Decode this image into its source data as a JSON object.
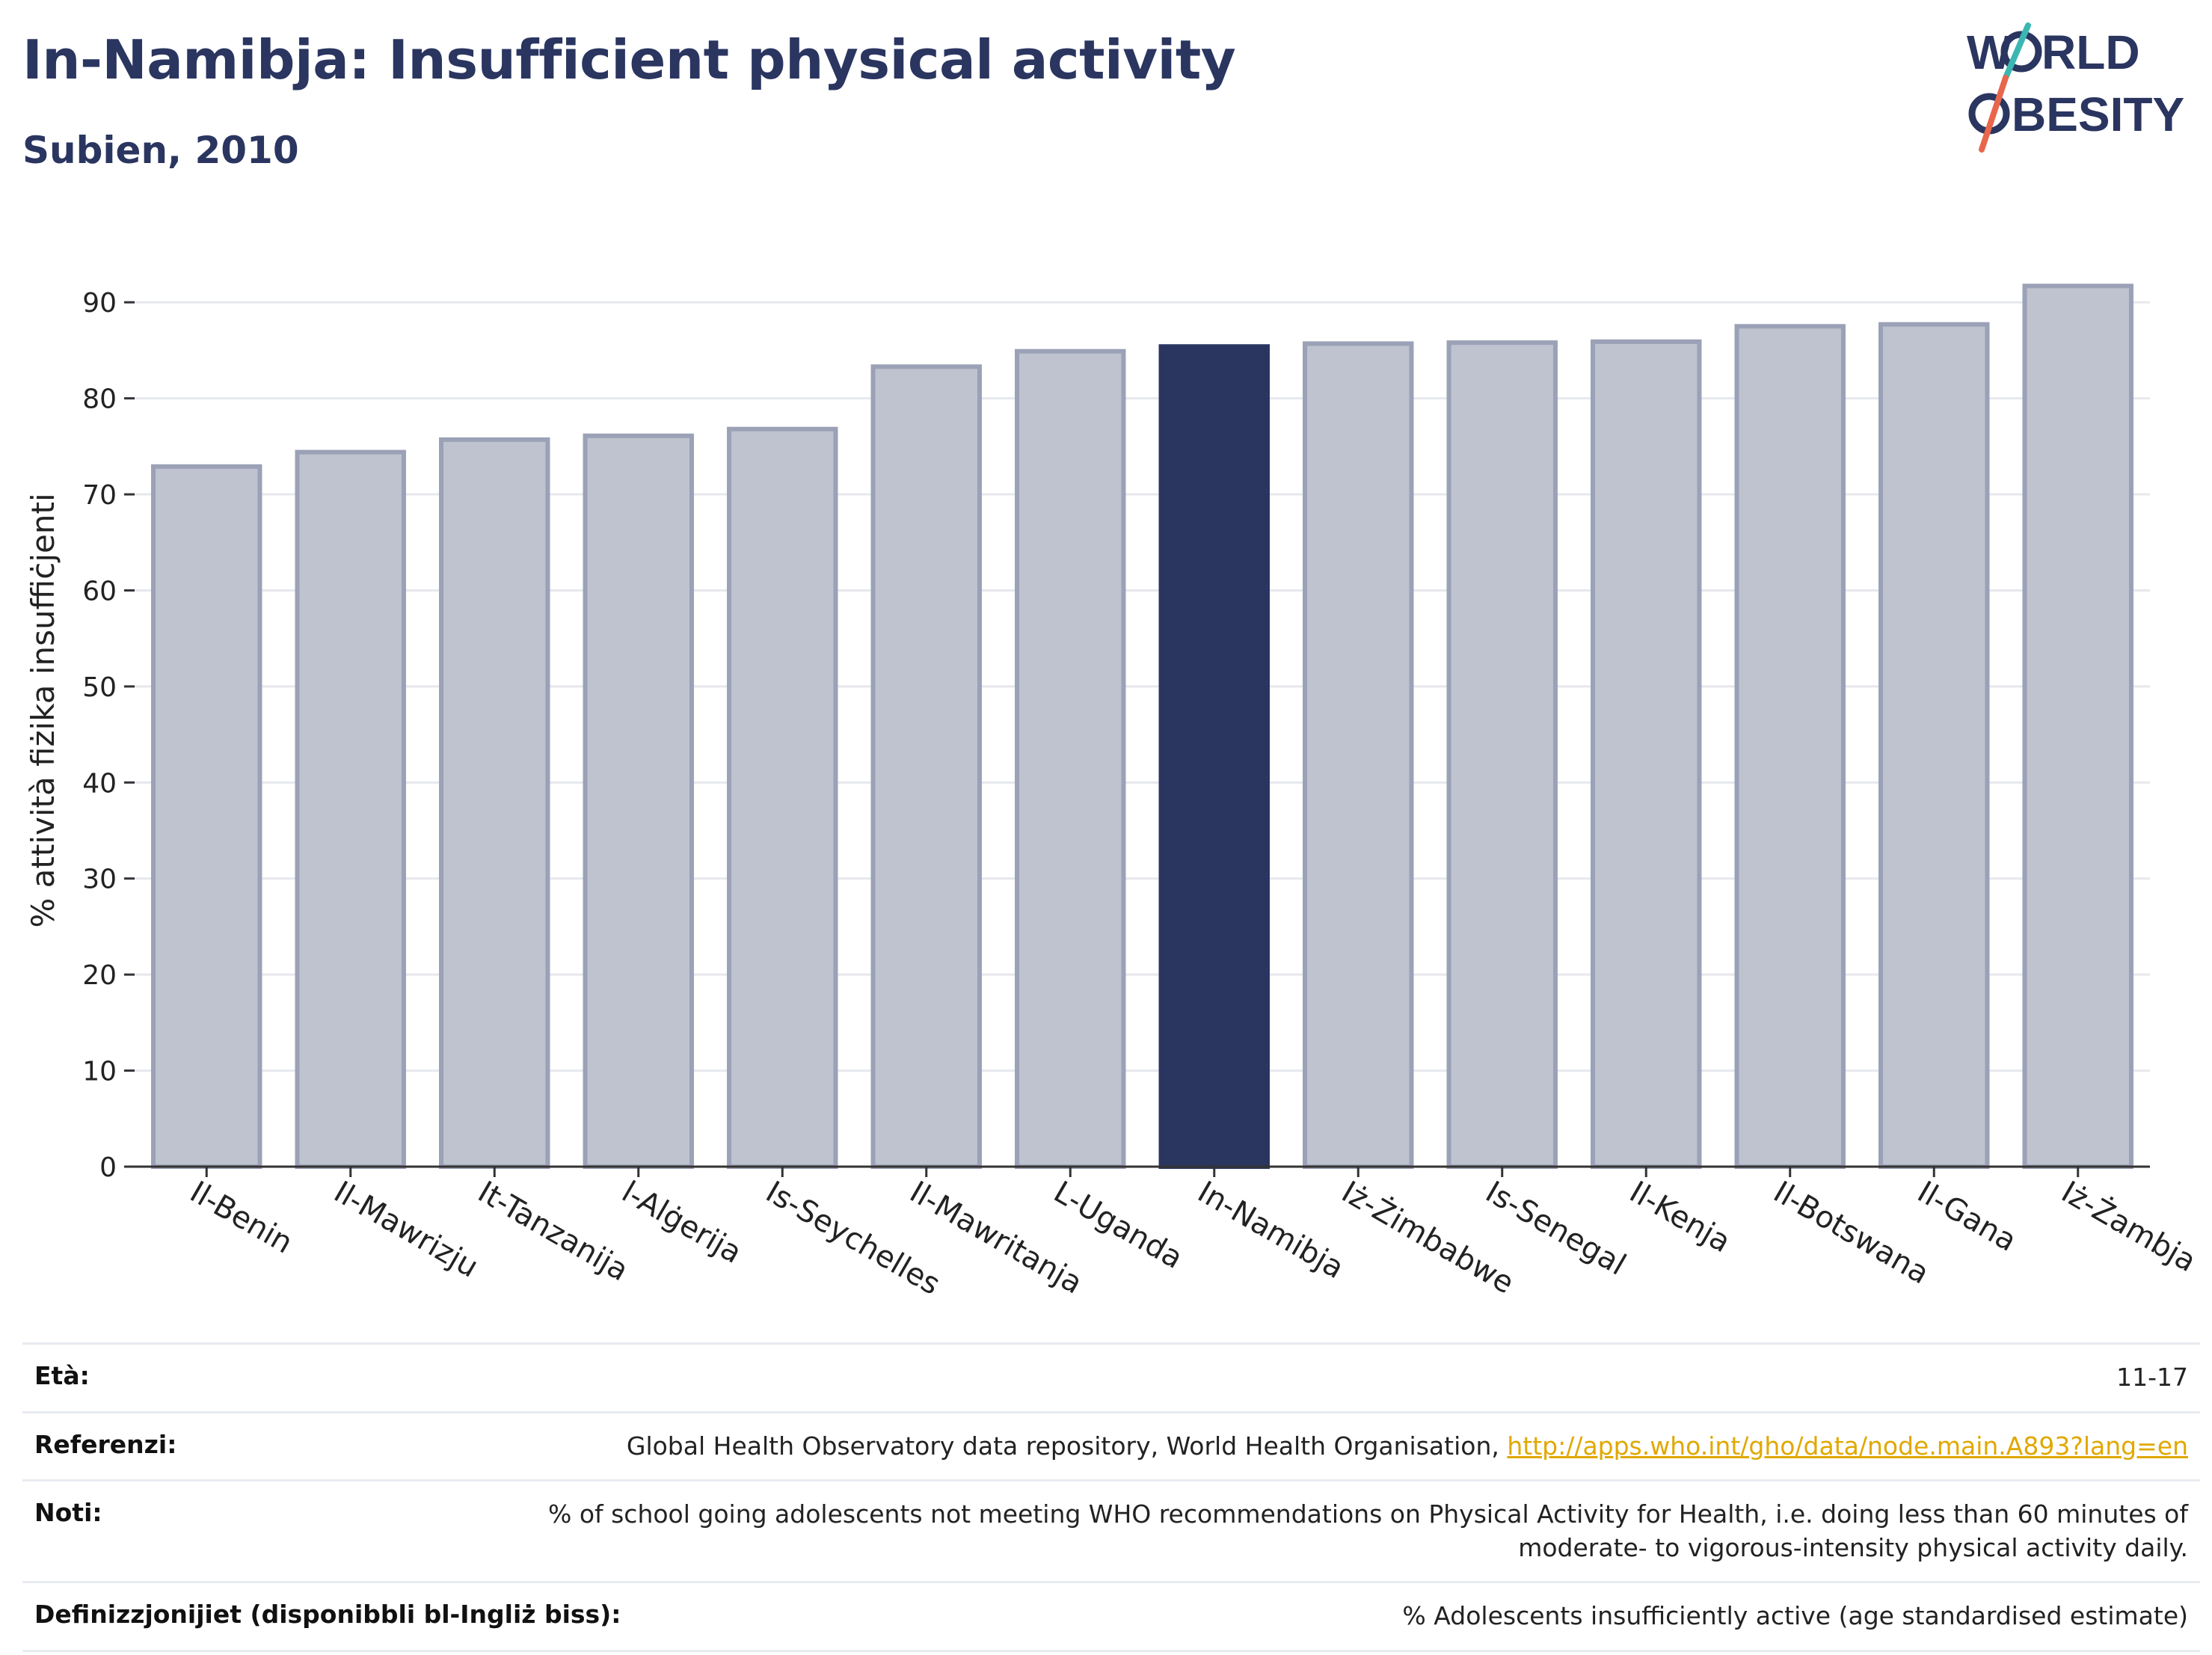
{
  "header": {
    "title": "In-Namibja: Insufficient physical activity",
    "subtitle": "Subien, 2010"
  },
  "logo": {
    "line1": "W",
    "line1_rest": "RLD",
    "line2_rest": "BESITY",
    "colors": {
      "text": "#2a3560",
      "slash_teal": "#3bb7b3",
      "slash_red": "#e8664c"
    }
  },
  "chart_data": {
    "type": "bar",
    "ylabel": "% attività fiżika insuffiċjenti",
    "xlabel": "",
    "ylim": [
      0,
      95
    ],
    "yticks": [
      0,
      10,
      20,
      30,
      40,
      50,
      60,
      70,
      80,
      90
    ],
    "categories": [
      "Il-Benin",
      "Il-Mawrizju",
      "It-Tanzanija",
      "l-Alġerija",
      "Is-Seychelles",
      "Il-Mawritanja",
      "L-Uganda",
      "In-Namibja",
      "Iż-Żimbabwe",
      "Is-Senegal",
      "Il-Kenja",
      "Il-Botswana",
      "Il-Gana",
      "Iż-Żambja"
    ],
    "values": [
      72.9,
      74.4,
      75.7,
      76.1,
      76.8,
      83.3,
      84.9,
      85.4,
      85.7,
      85.8,
      85.9,
      87.5,
      87.7,
      91.7
    ],
    "highlight": "In-Namibja",
    "colors": {
      "bar": "#bfc3cf",
      "bar_edge": "#9ba1b6",
      "highlight": "#2a3560",
      "grid": "#e6e8ee",
      "axis": "#333333"
    },
    "grid": true
  },
  "footer": {
    "rows": [
      {
        "label": "Età:",
        "value": "11-17"
      },
      {
        "label": "Referenzi:",
        "value": "Global Health Observatory data repository, World Health Organisation, ",
        "link": "http://apps.who.int/gho/data/node.main.A893?lang=en"
      },
      {
        "label": "Noti:",
        "value": "% of school going adolescents not meeting WHO recommendations on Physical Activity for Health, i.e. doing less than 60 minutes of moderate- to vigorous-intensity physical activity daily."
      },
      {
        "label": "Definizzjonijiet (disponibbli bl-Ingliż biss):",
        "value": "% Adolescents insufficiently active (age standardised estimate)"
      }
    ]
  }
}
